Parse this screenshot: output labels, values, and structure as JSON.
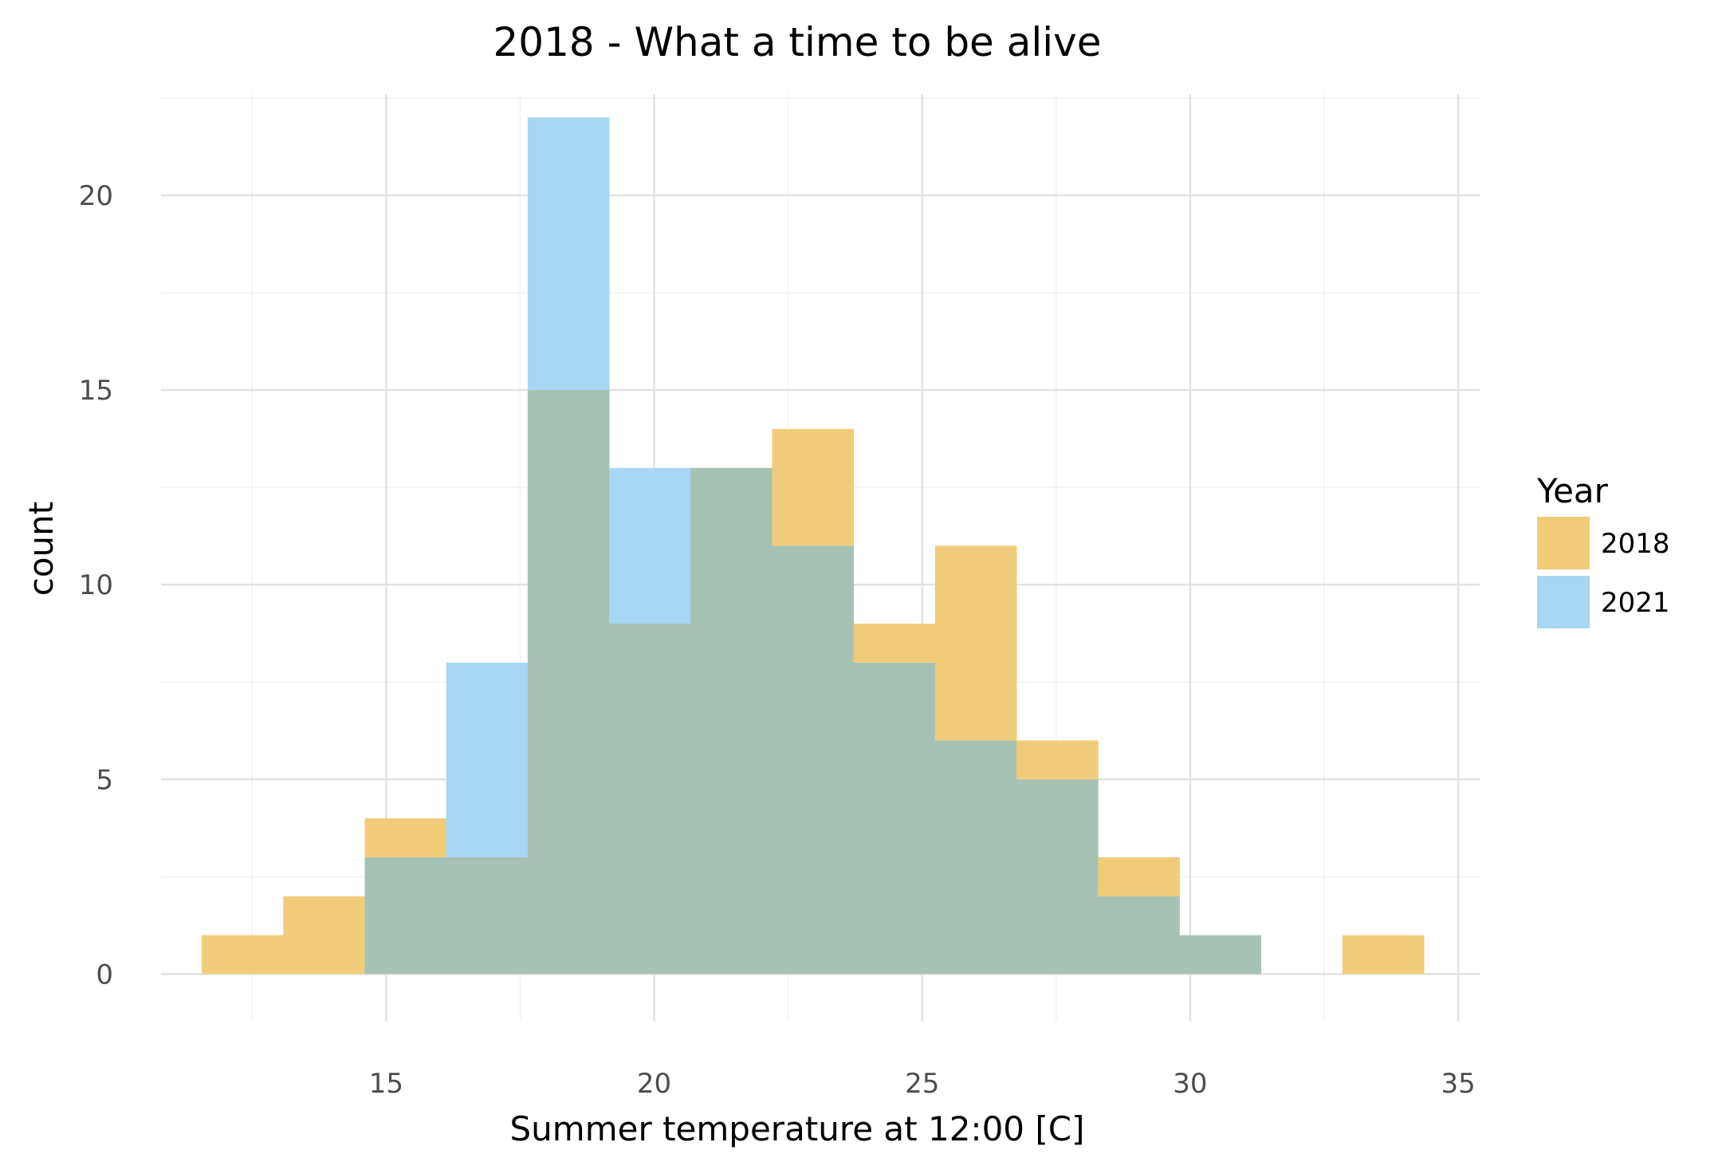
{
  "chart_data": {
    "type": "histogram",
    "title": "2018 - What a time to be alive",
    "xlabel": "Summer temperature at 12:00 [C]",
    "ylabel": "count",
    "xlim": [
      10.8,
      35.4
    ],
    "ylim": [
      -1.2,
      22.6
    ],
    "x_ticks": [
      15,
      20,
      25,
      30,
      35
    ],
    "y_ticks": [
      0,
      5,
      10,
      15,
      20
    ],
    "grid": true,
    "overlap_color": "#a6c2b4",
    "bin_edges": [
      11.56,
      13.08,
      14.6,
      16.12,
      17.64,
      19.16,
      20.68,
      22.2,
      23.72,
      25.24,
      26.76,
      28.28,
      29.8,
      31.32,
      32.84,
      34.36
    ],
    "series": [
      {
        "name": "2018",
        "color": "#f0cc7a",
        "values": [
          1,
          2,
          4,
          3,
          15,
          9,
          13,
          14,
          9,
          11,
          6,
          3,
          1,
          0,
          1
        ]
      },
      {
        "name": "2021",
        "color": "#a8d6f3",
        "values": [
          0,
          0,
          3,
          8,
          22,
          13,
          13,
          11,
          8,
          6,
          5,
          2,
          1,
          0,
          0
        ]
      }
    ],
    "legend": {
      "title": "Year",
      "position": "right"
    }
  }
}
